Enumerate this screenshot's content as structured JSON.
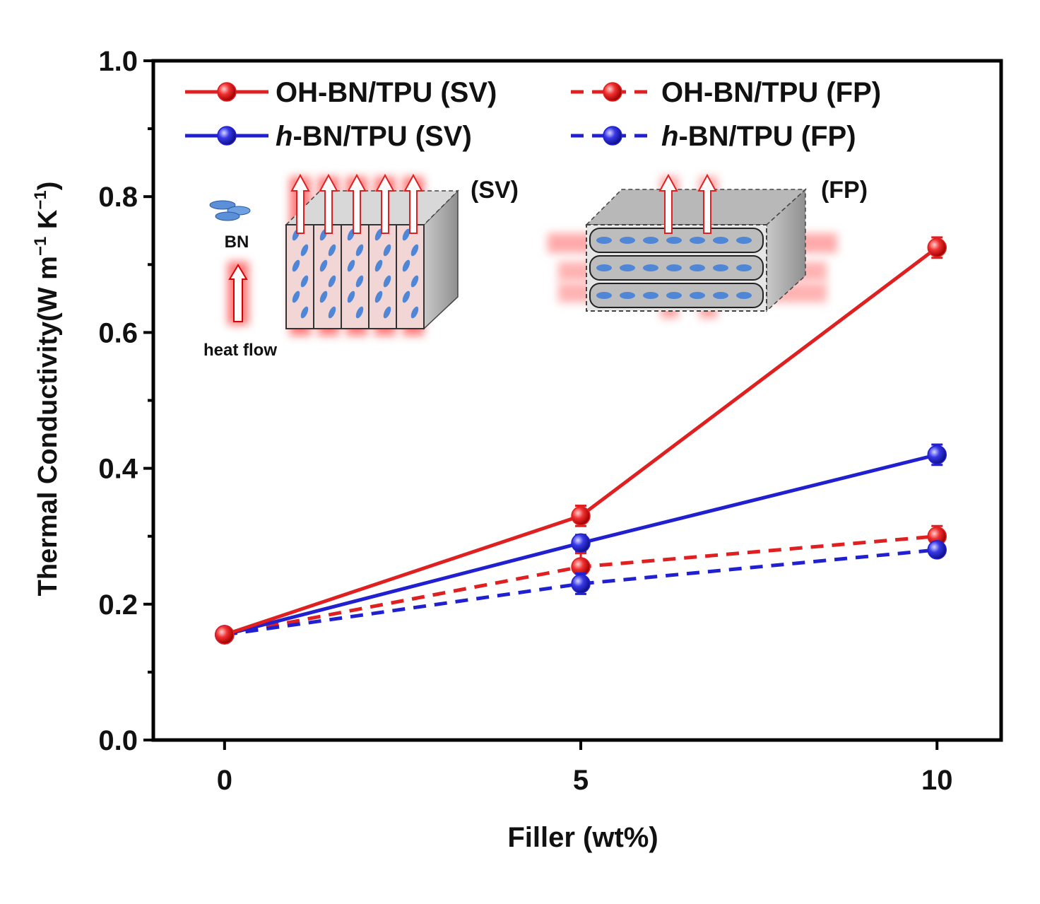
{
  "chart_data": {
    "type": "line",
    "xlabel": "Filler (wt%)",
    "ylabel": "Thermal Conductivity(W m",
    "ylabel_sup1": "−1",
    "ylabel_mid": " K",
    "ylabel_sup2": "−1",
    "ylabel_end": ")",
    "xlim": [
      -1,
      10.9
    ],
    "ylim": [
      0.0,
      1.0
    ],
    "x_ticks": [
      0,
      5,
      10
    ],
    "x_tick_labels": [
      "0",
      "5",
      "10"
    ],
    "y_ticks": [
      0.0,
      0.2,
      0.4,
      0.6,
      0.8,
      1.0
    ],
    "y_tick_labels": [
      "0.0",
      "0.2",
      "0.4",
      "0.6",
      "0.8",
      "1.0"
    ],
    "y_minor_ticks": [
      0.1,
      0.3,
      0.5,
      0.7,
      0.9
    ],
    "legend_position": "top",
    "series": [
      {
        "name": "OH-BN/TPU (SV)",
        "prefix": "",
        "label": "OH-BN/TPU (SV)",
        "color": "#e02020",
        "dash": "solid",
        "x": [
          0,
          5,
          10
        ],
        "values": [
          0.155,
          0.33,
          0.725
        ],
        "errors": [
          0.006,
          0.015,
          0.015
        ]
      },
      {
        "name": "OH-BN/TPU (FP)",
        "prefix": "",
        "label": "OH-BN/TPU (FP)",
        "color": "#e02020",
        "dash": "dashed",
        "x": [
          0,
          5,
          10
        ],
        "values": [
          0.155,
          0.255,
          0.3
        ],
        "errors": [
          0.006,
          0.02,
          0.015
        ]
      },
      {
        "name": "h-BN/TPU (SV)",
        "prefix": "h",
        "label": "-BN/TPU (SV)",
        "color": "#2020d0",
        "dash": "solid",
        "x": [
          0,
          5,
          10
        ],
        "values": [
          0.155,
          0.29,
          0.42
        ],
        "errors": [
          0.006,
          0.012,
          0.015
        ]
      },
      {
        "name": "h-BN/TPU (FP)",
        "prefix": "h",
        "label": "-BN/TPU (FP)",
        "color": "#2020d0",
        "dash": "dashed",
        "x": [
          0,
          5,
          10
        ],
        "values": [
          0.155,
          0.23,
          0.28
        ],
        "errors": [
          0.006,
          0.015,
          0.01
        ]
      }
    ],
    "inset": {
      "bn_label": "BN",
      "heat_flow_label": "heat flow",
      "sv_label": "(SV)",
      "fp_label": "(FP)"
    }
  }
}
